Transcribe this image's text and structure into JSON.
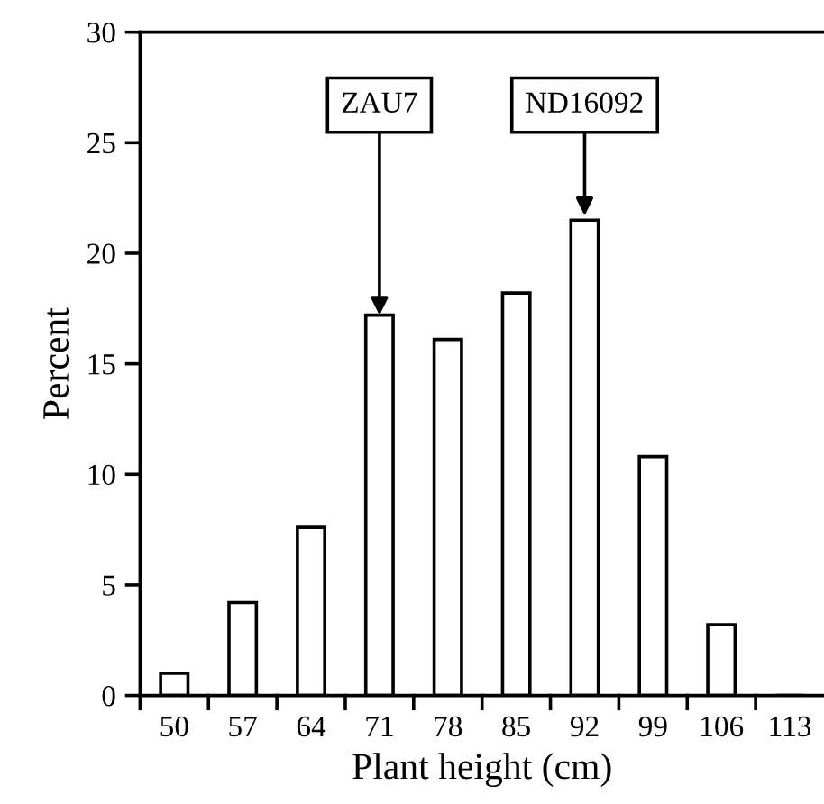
{
  "chart_data": {
    "type": "bar",
    "xlabel": "Plant height (cm)",
    "ylabel": "Percent",
    "categories": [
      "50",
      "57",
      "64",
      "71",
      "78",
      "85",
      "92",
      "99",
      "106",
      "113"
    ],
    "values": [
      1.0,
      4.2,
      7.6,
      17.2,
      16.1,
      18.2,
      21.5,
      10.8,
      3.2,
      0
    ],
    "color": "#ffffff",
    "ylim": [
      0,
      30
    ],
    "yticks": [
      0,
      5,
      10,
      15,
      20,
      25,
      30
    ],
    "grid": false,
    "legend": false,
    "annotations": [
      {
        "text": "ZAU7",
        "x": "71",
        "y": 17.2
      },
      {
        "text": "ND16092",
        "x": "92",
        "y": 21.7
      }
    ]
  }
}
